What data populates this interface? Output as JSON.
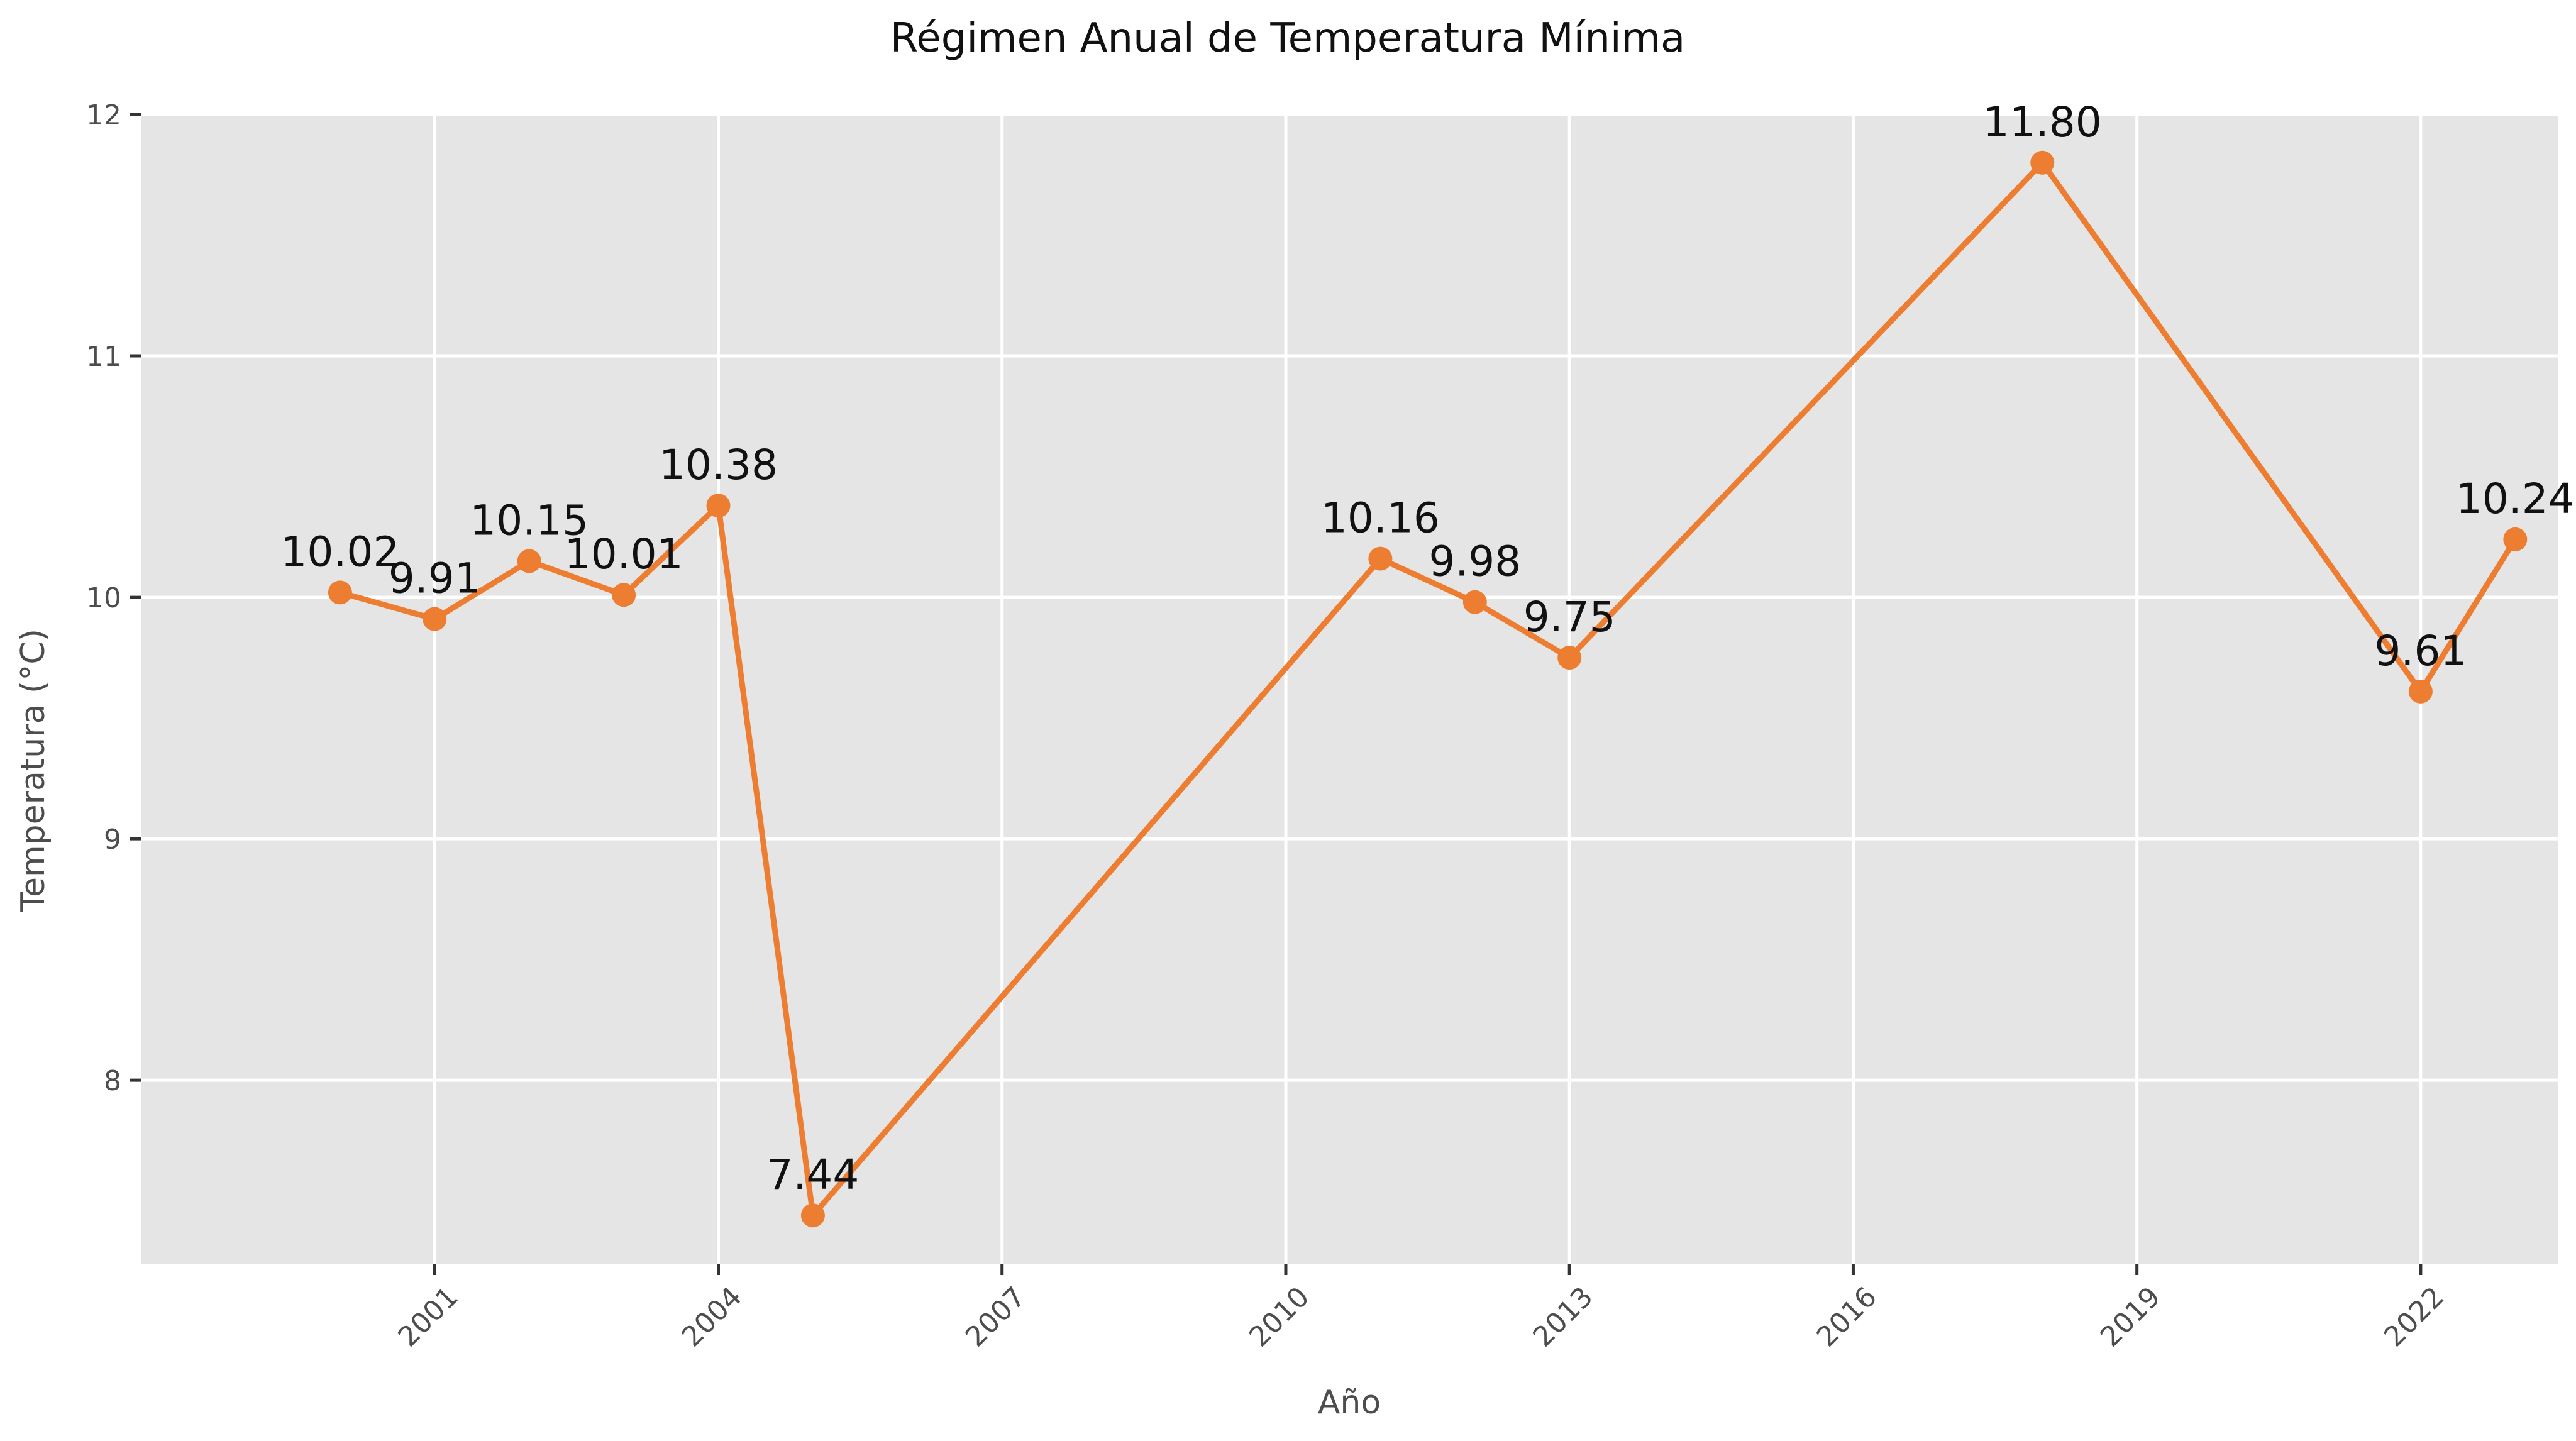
{
  "chart_data": {
    "type": "line",
    "title": "Régimen Anual de Temperatura Mínima",
    "xlabel": "Año",
    "ylabel": "Temperatura (°C)",
    "x": [
      2000,
      2001,
      2002,
      2003,
      2004,
      2005,
      2011,
      2012,
      2013,
      2018,
      2022,
      2023
    ],
    "series": [
      {
        "values": [
          10.02,
          9.91,
          10.15,
          10.01,
          10.38,
          7.44,
          10.16,
          9.98,
          9.75,
          11.8,
          9.61,
          10.24
        ]
      }
    ],
    "data_labels": [
      "10.02",
      "9.91",
      "10.15",
      "10.01",
      "10.38",
      "7.44",
      "10.16",
      "9.98",
      "9.75",
      "11.80",
      "9.61",
      "10.24"
    ],
    "xticks": [
      "2001",
      "2004",
      "2007",
      "2010",
      "2013",
      "2016",
      "2019",
      "2022"
    ],
    "yticks": [
      "8",
      "9",
      "10",
      "11",
      "12"
    ],
    "xlim": [
      1997.9,
      2023.45
    ],
    "ylim": [
      7.24,
      12.0
    ],
    "grid": true,
    "colors": {
      "line": "#ed7d31",
      "plot_background": "#e5e5e5",
      "grid": "#ffffff"
    }
  }
}
